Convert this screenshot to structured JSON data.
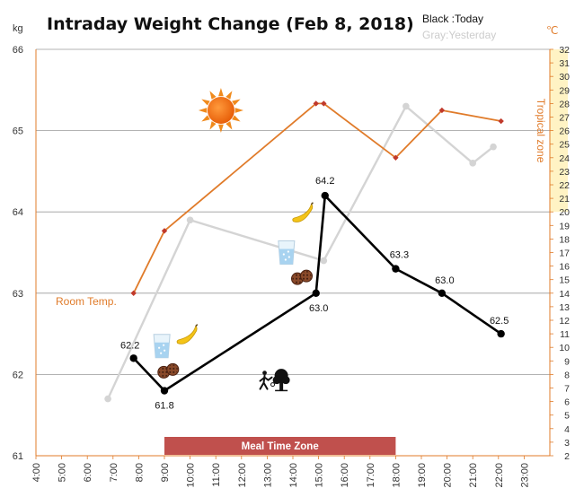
{
  "chart_data": {
    "type": "line",
    "title": "Intraday Weight Change (Feb 8, 2018)",
    "legend": {
      "today": "Black :Today",
      "yesterday": "Gray:Yesterday",
      "placement": "top-right"
    },
    "y_left": {
      "unit": "kg",
      "range": [
        61,
        66
      ],
      "ticks": [
        "61",
        "62",
        "63",
        "64",
        "65",
        "66"
      ]
    },
    "y_right": {
      "unit": "℃",
      "range": [
        2,
        32
      ],
      "ticks": [
        "2",
        "3",
        "4",
        "5",
        "6",
        "7",
        "8",
        "9",
        "10",
        "11",
        "12",
        "13",
        "14",
        "15",
        "16",
        "17",
        "18",
        "19",
        "20",
        "21",
        "22",
        "23",
        "24",
        "25",
        "26",
        "27",
        "28",
        "29",
        "30",
        "31",
        "32"
      ]
    },
    "x": {
      "range": [
        4,
        24
      ],
      "ticks": [
        "4:00",
        "5:00",
        "6:00",
        "7:00",
        "8:00",
        "9:00",
        "10:00",
        "11:00",
        "12:00",
        "13:00",
        "14:00",
        "15:00",
        "16:00",
        "17:00",
        "18:00",
        "19:00",
        "20:00",
        "21:00",
        "22:00",
        "23:00"
      ]
    },
    "grid": "horizontal",
    "series": [
      {
        "name": "Today",
        "color": "#000000",
        "points": [
          {
            "x": 7.8,
            "y": 62.2,
            "label": "62.2"
          },
          {
            "x": 9.0,
            "y": 61.8,
            "label": "61.8"
          },
          {
            "x": 14.9,
            "y": 63.0,
            "label": "63.0"
          },
          {
            "x": 15.25,
            "y": 64.2,
            "label": "64.2"
          },
          {
            "x": 18.0,
            "y": 63.3,
            "label": "63.3"
          },
          {
            "x": 19.8,
            "y": 63.0,
            "label": "63.0"
          },
          {
            "x": 22.1,
            "y": 62.5,
            "label": "62.5"
          }
        ]
      },
      {
        "name": "Yesterday",
        "color": "#d4d4d4",
        "points": [
          {
            "x": 6.8,
            "y": 61.7
          },
          {
            "x": 10.0,
            "y": 63.9
          },
          {
            "x": 15.2,
            "y": 63.4
          },
          {
            "x": 18.4,
            "y": 65.3
          },
          {
            "x": 21.0,
            "y": 64.6
          },
          {
            "x": 21.8,
            "y": 64.8
          }
        ]
      },
      {
        "name": "Room Temp.",
        "color": "#e07b2a",
        "marker_color": "#c0392b",
        "axis": "right",
        "points": [
          {
            "x": 7.8,
            "y": 14.0
          },
          {
            "x": 9.0,
            "y": 18.6
          },
          {
            "x": 14.9,
            "y": 28.0
          },
          {
            "x": 15.2,
            "y": 28.0
          },
          {
            "x": 18.0,
            "y": 24.0
          },
          {
            "x": 19.8,
            "y": 27.5
          },
          {
            "x": 22.1,
            "y": 26.7
          }
        ]
      }
    ],
    "annotations": {
      "room_temp_label": "Room Temp.",
      "tropical_zone_label": "Tropical zone",
      "tropical_zone_from": 20,
      "meal_time_zone": {
        "label": "Meal Time Zone",
        "from": 9,
        "to": 18
      }
    },
    "pictograms": [
      {
        "icon": "sun-icon",
        "x": 11.2,
        "y": 65.25
      },
      {
        "icon": "banana-icon",
        "x": 14.4,
        "y": 63.95
      },
      {
        "icon": "water-glass-icon",
        "x": 13.75,
        "y": 63.5
      },
      {
        "icon": "cookies-icon",
        "x": 14.35,
        "y": 63.2
      },
      {
        "icon": "water-glass-icon",
        "x": 8.9,
        "y": 62.35
      },
      {
        "icon": "banana-icon",
        "x": 9.9,
        "y": 62.45
      },
      {
        "icon": "cookies-icon",
        "x": 9.15,
        "y": 62.05
      },
      {
        "icon": "walking-person-icon",
        "x": 12.9,
        "y": 61.92
      },
      {
        "icon": "tree-icon",
        "x": 13.55,
        "y": 61.92
      }
    ]
  }
}
